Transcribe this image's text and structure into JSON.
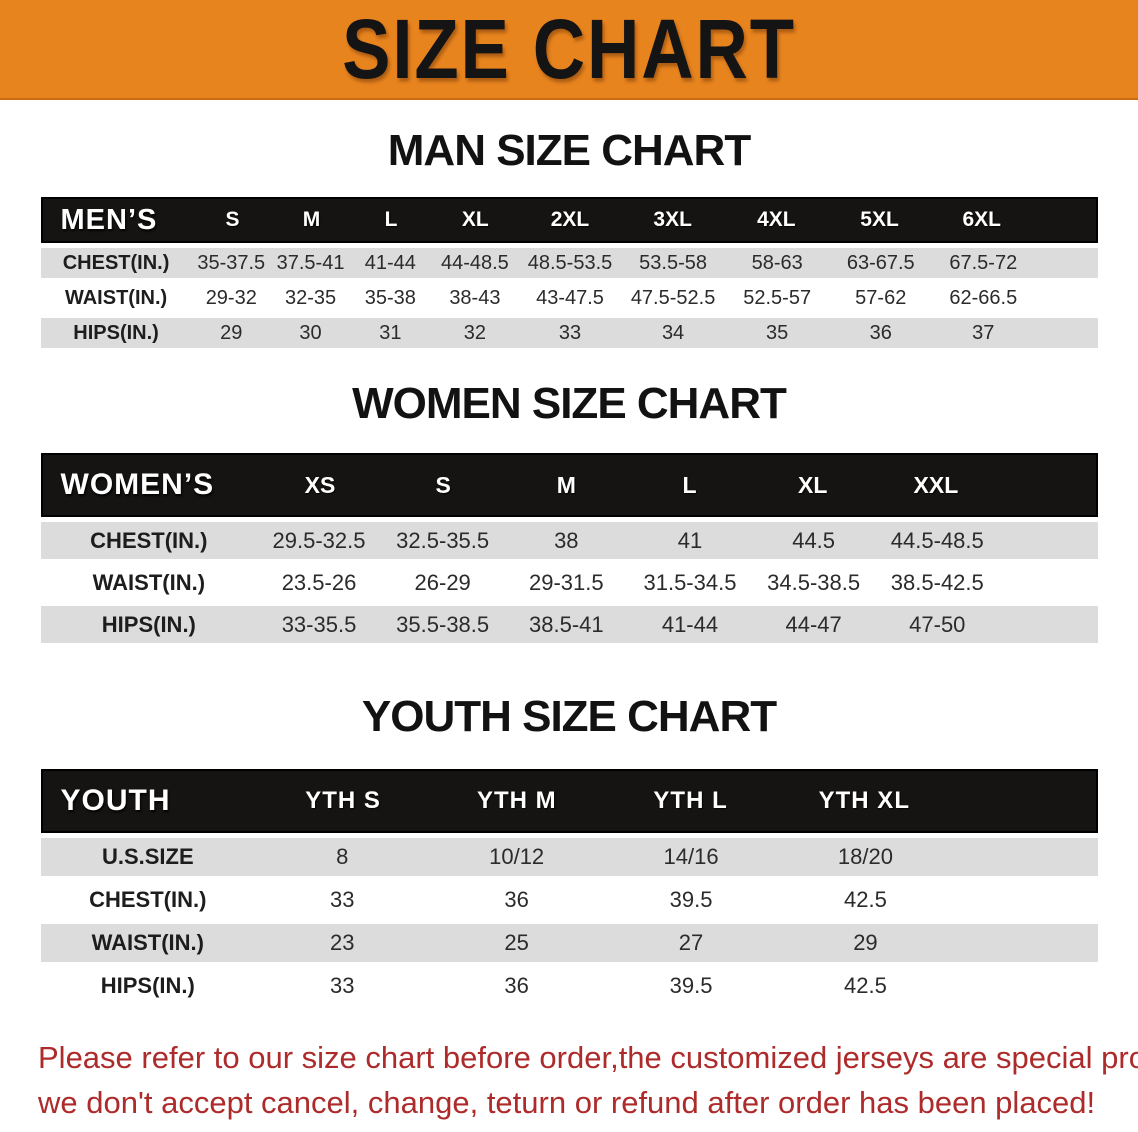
{
  "banner": {
    "title": "SIZE CHART"
  },
  "palette": {
    "banner_orange": "#E8841E",
    "table_header_black": "#161412",
    "stripe_gray": "#DCDCDC",
    "footer_red": "#AD2B2B"
  },
  "sections": {
    "men": {
      "heading": "MAN SIZE CHART",
      "table": {
        "header_label": "MEN’S",
        "columns": [
          "S",
          "M",
          "L",
          "XL",
          "2XL",
          "3XL",
          "4XL",
          "5XL",
          "6XL"
        ],
        "rows": [
          {
            "label": "CHEST(IN.)",
            "values": [
              "35-37.5",
              "37.5-41",
              "41-44",
              "44-48.5",
              "48.5-53.5",
              "53.5-58",
              "58-63",
              "63-67.5",
              "67.5-72"
            ]
          },
          {
            "label": "WAIST(IN.)",
            "values": [
              "29-32",
              "32-35",
              "35-38",
              "38-43",
              "43-47.5",
              "47.5-52.5",
              "52.5-57",
              "57-62",
              "62-66.5"
            ]
          },
          {
            "label": "HIPS(IN.)",
            "values": [
              "29",
              "30",
              "31",
              "32",
              "33",
              "34",
              "35",
              "36",
              "37"
            ]
          }
        ]
      }
    },
    "women": {
      "heading": "WOMEN SIZE CHART",
      "table": {
        "header_label": "WOMEN’S",
        "columns": [
          "XS",
          "S",
          "M",
          "L",
          "XL",
          "XXL"
        ],
        "rows": [
          {
            "label": "CHEST(IN.)",
            "values": [
              "29.5-32.5",
              "32.5-35.5",
              "38",
              "41",
              "44.5",
              "44.5-48.5"
            ]
          },
          {
            "label": "WAIST(IN.)",
            "values": [
              "23.5-26",
              "26-29",
              "29-31.5",
              "31.5-34.5",
              "34.5-38.5",
              "38.5-42.5"
            ]
          },
          {
            "label": "HIPS(IN.)",
            "values": [
              "33-35.5",
              "35.5-38.5",
              "38.5-41",
              "41-44",
              "44-47",
              "47-50"
            ]
          }
        ]
      }
    },
    "youth": {
      "heading": "YOUTH SIZE CHART",
      "table": {
        "header_label": "YOUTH",
        "columns": [
          "YTH S",
          "YTH M",
          "YTH L",
          "YTH XL"
        ],
        "rows": [
          {
            "label": "U.S.SIZE",
            "values": [
              "8",
              "10/12",
              "14/16",
              "18/20"
            ]
          },
          {
            "label": "CHEST(IN.)",
            "values": [
              "33",
              "36",
              "39.5",
              "42.5"
            ]
          },
          {
            "label": "WAIST(IN.)",
            "values": [
              "23",
              "25",
              "27",
              "29"
            ]
          },
          {
            "label": "HIPS(IN.)",
            "values": [
              "33",
              "36",
              "39.5",
              "42.5"
            ]
          }
        ]
      }
    }
  },
  "footer": {
    "line1": "Please refer to our size chart before order,the customized jerseys are special products,",
    "line2": "we don't accept cancel, change, teturn or refund after order has been placed!"
  }
}
